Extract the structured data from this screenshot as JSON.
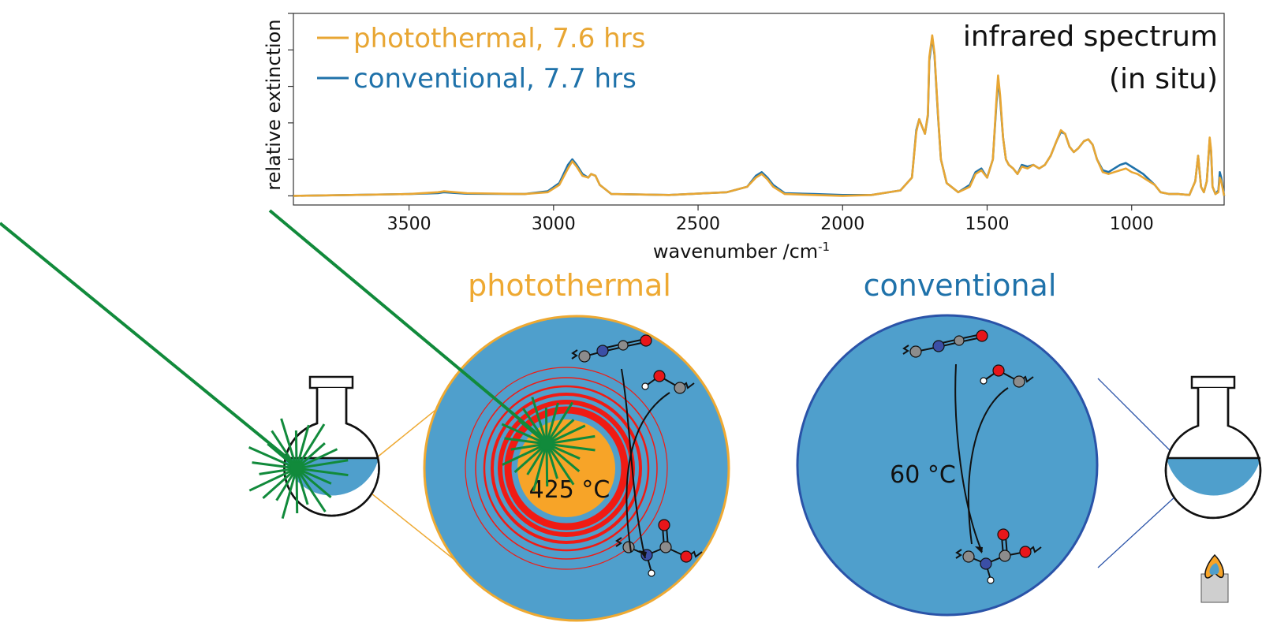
{
  "chart_data": {
    "type": "line",
    "title": "infrared spectrum",
    "subtitle": "(in situ)",
    "xlabel": "wavenumber /cm",
    "xlabel_superscript": "-1",
    "ylabel": "relative extinction",
    "xlim": [
      3900,
      680
    ],
    "x_reversed": true,
    "ylim": [
      -0.05,
      1.0
    ],
    "grid": false,
    "legend_position": "top-left",
    "x_ticks": [
      "3500",
      "3000",
      "2500",
      "2000",
      "1500",
      "1000"
    ],
    "y_ticks_labeled": false,
    "series": [
      {
        "name": "photothermal",
        "legend_value": "7.6 hrs",
        "color": "#e8a633",
        "x": [
          3900,
          3700,
          3500,
          3400,
          3380,
          3300,
          3100,
          3020,
          2980,
          2950,
          2935,
          2920,
          2900,
          2880,
          2870,
          2855,
          2840,
          2800,
          2600,
          2400,
          2330,
          2300,
          2280,
          2260,
          2240,
          2200,
          2100,
          2000,
          1900,
          1800,
          1760,
          1745,
          1735,
          1725,
          1715,
          1705,
          1700,
          1690,
          1682,
          1670,
          1660,
          1640,
          1600,
          1560,
          1540,
          1520,
          1500,
          1480,
          1468,
          1462,
          1455,
          1445,
          1435,
          1425,
          1410,
          1395,
          1380,
          1360,
          1340,
          1320,
          1300,
          1280,
          1260,
          1245,
          1230,
          1215,
          1200,
          1185,
          1165,
          1150,
          1135,
          1120,
          1100,
          1080,
          1060,
          1040,
          1020,
          1000,
          980,
          960,
          940,
          920,
          900,
          870,
          840,
          800,
          780,
          770,
          760,
          750,
          740,
          730,
          725,
          720,
          710,
          700,
          695,
          690,
          680
        ],
        "y": [
          0.0,
          0.005,
          0.01,
          0.02,
          0.025,
          0.015,
          0.01,
          0.02,
          0.06,
          0.15,
          0.19,
          0.16,
          0.11,
          0.1,
          0.12,
          0.11,
          0.06,
          0.01,
          0.005,
          0.02,
          0.05,
          0.1,
          0.12,
          0.09,
          0.05,
          0.01,
          0.005,
          0.0,
          0.005,
          0.03,
          0.1,
          0.35,
          0.42,
          0.38,
          0.34,
          0.45,
          0.76,
          0.88,
          0.78,
          0.45,
          0.2,
          0.07,
          0.02,
          0.05,
          0.12,
          0.14,
          0.1,
          0.2,
          0.52,
          0.66,
          0.55,
          0.32,
          0.2,
          0.17,
          0.15,
          0.12,
          0.16,
          0.15,
          0.17,
          0.15,
          0.17,
          0.22,
          0.3,
          0.36,
          0.34,
          0.27,
          0.24,
          0.26,
          0.3,
          0.31,
          0.28,
          0.2,
          0.13,
          0.12,
          0.13,
          0.14,
          0.15,
          0.13,
          0.12,
          0.1,
          0.08,
          0.06,
          0.02,
          0.01,
          0.01,
          0.005,
          0.08,
          0.22,
          0.05,
          0.02,
          0.08,
          0.32,
          0.25,
          0.05,
          0.01,
          0.02,
          0.1,
          0.08,
          0.0
        ]
      },
      {
        "name": "conventional",
        "legend_value": "7.7 hrs",
        "color": "#1f72aa",
        "x": [
          3900,
          3700,
          3500,
          3400,
          3380,
          3300,
          3100,
          3020,
          2980,
          2950,
          2935,
          2920,
          2900,
          2880,
          2870,
          2855,
          2840,
          2800,
          2600,
          2400,
          2330,
          2300,
          2280,
          2260,
          2240,
          2200,
          2100,
          2000,
          1900,
          1800,
          1760,
          1745,
          1735,
          1725,
          1715,
          1705,
          1700,
          1690,
          1682,
          1670,
          1660,
          1640,
          1600,
          1560,
          1540,
          1520,
          1500,
          1480,
          1468,
          1462,
          1455,
          1445,
          1435,
          1425,
          1410,
          1395,
          1380,
          1360,
          1340,
          1320,
          1300,
          1280,
          1260,
          1245,
          1230,
          1215,
          1200,
          1185,
          1165,
          1150,
          1135,
          1120,
          1100,
          1080,
          1060,
          1040,
          1020,
          1000,
          980,
          960,
          940,
          920,
          900,
          870,
          840,
          800,
          780,
          770,
          760,
          750,
          740,
          730,
          725,
          720,
          710,
          700,
          695,
          690,
          680
        ],
        "y": [
          0.0,
          0.005,
          0.01,
          0.015,
          0.02,
          0.012,
          0.01,
          0.025,
          0.07,
          0.17,
          0.2,
          0.17,
          0.12,
          0.1,
          0.12,
          0.11,
          0.06,
          0.01,
          0.005,
          0.02,
          0.05,
          0.11,
          0.13,
          0.1,
          0.06,
          0.015,
          0.01,
          0.005,
          0.005,
          0.03,
          0.1,
          0.36,
          0.42,
          0.38,
          0.34,
          0.44,
          0.74,
          0.87,
          0.77,
          0.44,
          0.2,
          0.07,
          0.02,
          0.06,
          0.13,
          0.15,
          0.1,
          0.2,
          0.5,
          0.64,
          0.53,
          0.32,
          0.2,
          0.17,
          0.15,
          0.12,
          0.17,
          0.16,
          0.17,
          0.15,
          0.17,
          0.22,
          0.3,
          0.35,
          0.34,
          0.27,
          0.24,
          0.26,
          0.3,
          0.31,
          0.28,
          0.2,
          0.14,
          0.13,
          0.15,
          0.17,
          0.18,
          0.16,
          0.14,
          0.12,
          0.09,
          0.06,
          0.02,
          0.01,
          0.01,
          0.005,
          0.08,
          0.22,
          0.05,
          0.02,
          0.08,
          0.31,
          0.24,
          0.05,
          0.01,
          0.03,
          0.13,
          0.1,
          0.0
        ]
      }
    ]
  },
  "diagram": {
    "photothermal_title": "photothermal",
    "conventional_title": "conventional",
    "photothermal_temperature": "425 °C",
    "conventional_temperature": "60 °C",
    "colors": {
      "photothermal": "#eea932",
      "conventional": "#1f72aa",
      "liquid": "#4f9fcc",
      "laser": "#118a3b",
      "heat_rings": "#f01b14",
      "hotspot": "#f7a428",
      "circle_border_photothermal": "#eea932",
      "circle_border_conventional": "#2a53a8",
      "atom_carbon": "#8c8c8c",
      "atom_nitrogen": "#3b4fa6",
      "atom_oxygen": "#e8161a",
      "atom_hydrogen": "#ffffff"
    }
  }
}
